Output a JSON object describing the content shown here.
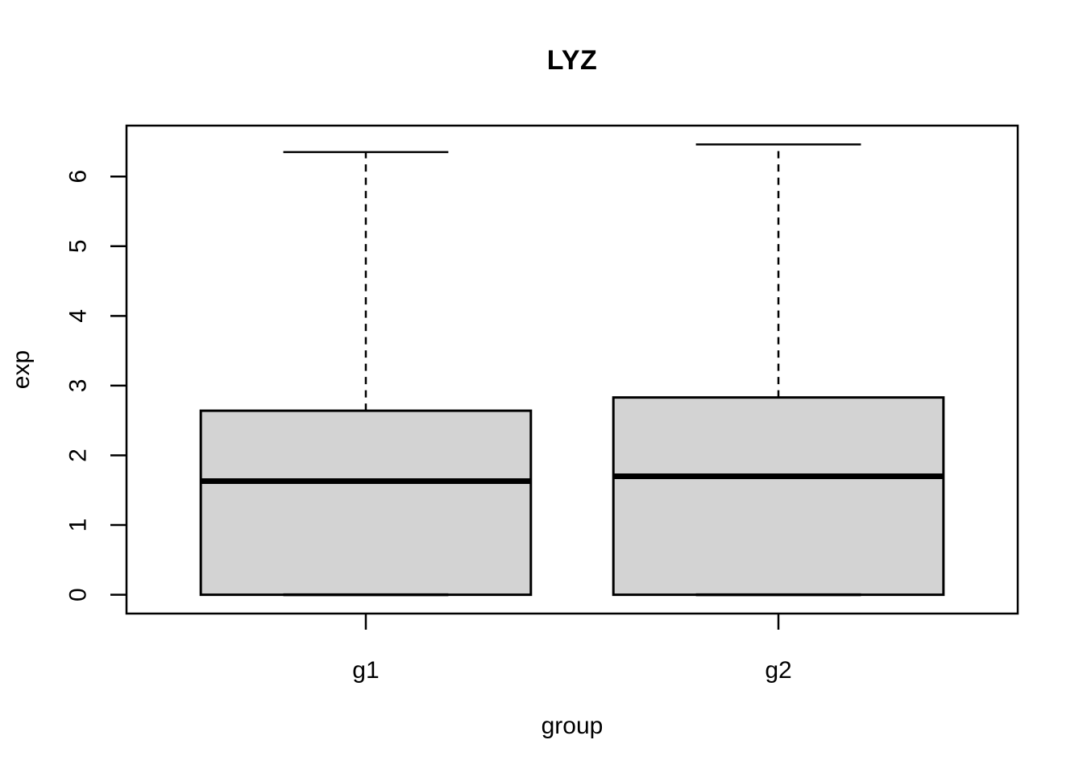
{
  "chart_data": {
    "type": "boxplot",
    "title": "LYZ",
    "xlabel": "group",
    "ylabel": "exp",
    "categories": [
      "g1",
      "g2"
    ],
    "series": [
      {
        "name": "g1",
        "min": 0,
        "q1": 0,
        "median": 1.63,
        "q3": 2.64,
        "max": 6.35,
        "outliers": []
      },
      {
        "name": "g2",
        "min": 0,
        "q1": 0,
        "median": 1.7,
        "q3": 2.83,
        "max": 6.46,
        "outliers": []
      }
    ],
    "yticks": [
      0,
      1,
      2,
      3,
      4,
      5,
      6
    ],
    "ylim": [
      -0.27,
      6.73
    ],
    "grid": false,
    "legend": null,
    "box_fill": "#d3d3d3",
    "line_color": "#000000",
    "background": "#ffffff"
  }
}
